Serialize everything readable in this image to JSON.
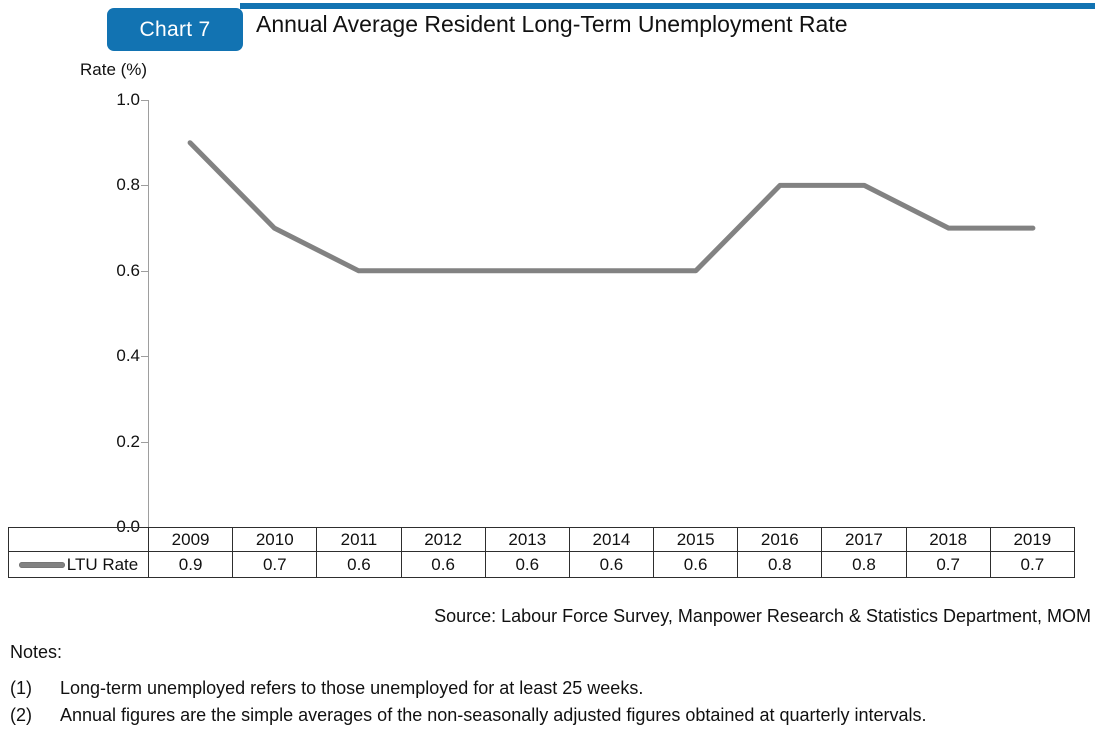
{
  "header": {
    "badge_label": "Chart 7",
    "title": "Annual Average Resident Long-Term Unemployment Rate"
  },
  "colors": {
    "accent_blue": "#1273B2",
    "line_gray": "#828282"
  },
  "chart_data": {
    "type": "line",
    "title": "Annual Average Resident Long-Term Unemployment Rate",
    "ylabel": "Rate (%)",
    "categories": [
      "2009",
      "2010",
      "2011",
      "2012",
      "2013",
      "2014",
      "2015",
      "2016",
      "2017",
      "2018",
      "2019"
    ],
    "series": [
      {
        "name": "LTU Rate",
        "values": [
          0.9,
          0.7,
          0.6,
          0.6,
          0.6,
          0.6,
          0.6,
          0.8,
          0.8,
          0.7,
          0.7
        ]
      }
    ],
    "ylim": [
      0.0,
      1.0
    ],
    "yticks": [
      "1.0",
      "0.8",
      "0.6",
      "0.4",
      "0.2",
      "0.0"
    ],
    "grid": false,
    "legend_position": "table-row-left",
    "value_decimals": 1
  },
  "source": "Source: Labour Force Survey, Manpower Research & Statistics Department, MOM",
  "notes": {
    "heading": "Notes:",
    "items": [
      {
        "num": "(1)",
        "text": "Long-term unemployed refers to those unemployed for at least 25 weeks."
      },
      {
        "num": "(2)",
        "text": "Annual figures are the simple averages of the non-seasonally adjusted figures obtained at quarterly intervals."
      }
    ]
  }
}
